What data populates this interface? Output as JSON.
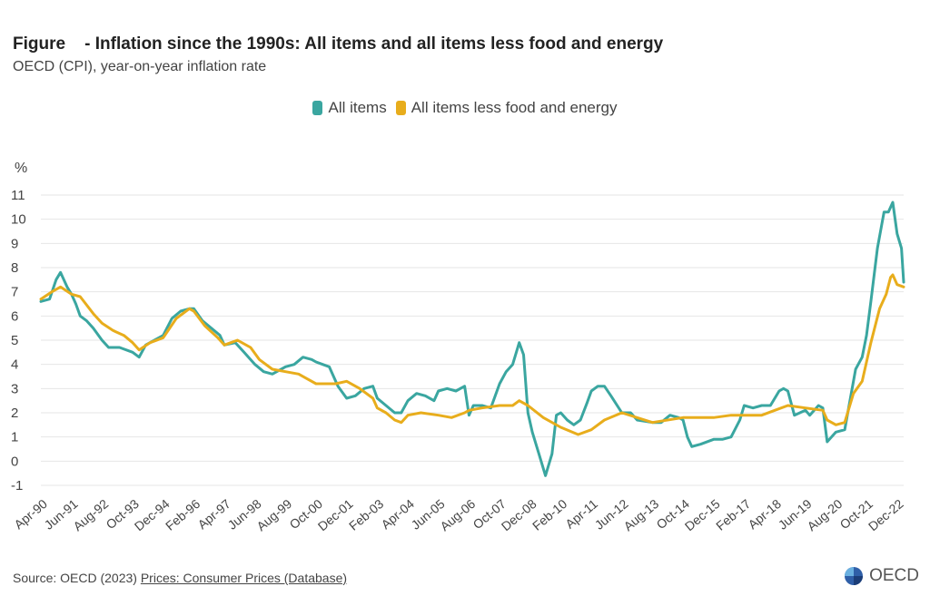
{
  "header": {
    "title": "Figure    - Inflation since the 1990s: All items and all items less food and energy",
    "subtitle": "OECD (CPI), year-on-year inflation rate"
  },
  "legend": [
    {
      "label": "All items",
      "color": "#3aa6a0"
    },
    {
      "label": "All items less food and energy",
      "color": "#e8ad1c"
    }
  ],
  "footer": {
    "source_prefix": "Source: OECD (2023) ",
    "source_link": "Prices: Consumer Prices (Database)",
    "logo_text": "OECD"
  },
  "chart_data": {
    "type": "line",
    "ylabel": "%",
    "ylim": [
      -1,
      11
    ],
    "yticks": [
      -1,
      0,
      1,
      2,
      3,
      4,
      5,
      6,
      7,
      8,
      9,
      10,
      11
    ],
    "grid": true,
    "x_range": [
      "Apr-90",
      "Mar-23"
    ],
    "xticks": [
      "Apr-90",
      "Jun-91",
      "Aug-92",
      "Oct-93",
      "Dec-94",
      "Feb-96",
      "Apr-97",
      "Jun-98",
      "Aug-99",
      "Oct-00",
      "Dec-01",
      "Feb-03",
      "Apr-04",
      "Jun-05",
      "Aug-06",
      "Oct-07",
      "Dec-08",
      "Feb-10",
      "Apr-11",
      "Jun-12",
      "Aug-13",
      "Oct-14",
      "Dec-15",
      "Feb-17",
      "Apr-18",
      "Jun-19",
      "Aug-20",
      "Oct-21",
      "Dec-22"
    ],
    "series": [
      {
        "name": "All items",
        "color": "#3aa6a0",
        "points": [
          [
            "Apr-90",
            6.6
          ],
          [
            "Aug-90",
            6.7
          ],
          [
            "Nov-90",
            7.5
          ],
          [
            "Jan-91",
            7.8
          ],
          [
            "Apr-91",
            7.2
          ],
          [
            "Jun-91",
            6.9
          ],
          [
            "Aug-91",
            6.5
          ],
          [
            "Oct-91",
            6.0
          ],
          [
            "Jan-92",
            5.8
          ],
          [
            "Apr-92",
            5.5
          ],
          [
            "Aug-92",
            5.0
          ],
          [
            "Nov-92",
            4.7
          ],
          [
            "Apr-93",
            4.7
          ],
          [
            "Oct-93",
            4.5
          ],
          [
            "Jan-94",
            4.3
          ],
          [
            "Apr-94",
            4.8
          ],
          [
            "Aug-94",
            5.0
          ],
          [
            "Dec-94",
            5.2
          ],
          [
            "Apr-95",
            5.9
          ],
          [
            "Aug-95",
            6.2
          ],
          [
            "Dec-95",
            6.3
          ],
          [
            "Feb-96",
            6.3
          ],
          [
            "Jun-96",
            5.8
          ],
          [
            "Oct-96",
            5.5
          ],
          [
            "Feb-97",
            5.2
          ],
          [
            "Apr-97",
            4.8
          ],
          [
            "Sep-97",
            4.9
          ],
          [
            "Jan-98",
            4.5
          ],
          [
            "Jun-98",
            4.0
          ],
          [
            "Oct-98",
            3.7
          ],
          [
            "Feb-99",
            3.6
          ],
          [
            "Aug-99",
            3.9
          ],
          [
            "Dec-99",
            4.0
          ],
          [
            "Apr-00",
            4.3
          ],
          [
            "Aug-00",
            4.2
          ],
          [
            "Oct-00",
            4.1
          ],
          [
            "Jan-01",
            4.0
          ],
          [
            "Apr-01",
            3.9
          ],
          [
            "Aug-01",
            3.1
          ],
          [
            "Dec-01",
            2.6
          ],
          [
            "Apr-02",
            2.7
          ],
          [
            "Aug-02",
            3.0
          ],
          [
            "Dec-02",
            3.1
          ],
          [
            "Feb-03",
            2.6
          ],
          [
            "Jun-03",
            2.3
          ],
          [
            "Oct-03",
            2.0
          ],
          [
            "Jan-04",
            2.0
          ],
          [
            "Apr-04",
            2.5
          ],
          [
            "Aug-04",
            2.8
          ],
          [
            "Dec-04",
            2.7
          ],
          [
            "Apr-05",
            2.5
          ],
          [
            "Jun-05",
            2.9
          ],
          [
            "Oct-05",
            3.0
          ],
          [
            "Feb-06",
            2.9
          ],
          [
            "Jun-06",
            3.1
          ],
          [
            "Aug-06",
            1.9
          ],
          [
            "Oct-06",
            2.3
          ],
          [
            "Feb-07",
            2.3
          ],
          [
            "Jun-07",
            2.2
          ],
          [
            "Oct-07",
            3.2
          ],
          [
            "Jan-08",
            3.7
          ],
          [
            "Apr-08",
            4.0
          ],
          [
            "Jul-08",
            4.9
          ],
          [
            "Sep-08",
            4.4
          ],
          [
            "Nov-08",
            2.0
          ],
          [
            "Jan-09",
            1.2
          ],
          [
            "Apr-09",
            0.3
          ],
          [
            "Jul-09",
            -0.6
          ],
          [
            "Oct-09",
            0.3
          ],
          [
            "Dec-09",
            1.9
          ],
          [
            "Feb-10",
            2.0
          ],
          [
            "May-10",
            1.7
          ],
          [
            "Aug-10",
            1.5
          ],
          [
            "Nov-10",
            1.7
          ],
          [
            "Feb-11",
            2.4
          ],
          [
            "Apr-11",
            2.9
          ],
          [
            "Jul-11",
            3.1
          ],
          [
            "Oct-11",
            3.1
          ],
          [
            "Jan-12",
            2.7
          ],
          [
            "Jun-12",
            2.0
          ],
          [
            "Oct-12",
            2.0
          ],
          [
            "Jan-13",
            1.7
          ],
          [
            "Aug-13",
            1.6
          ],
          [
            "Dec-13",
            1.6
          ],
          [
            "Apr-14",
            1.9
          ],
          [
            "Aug-14",
            1.8
          ],
          [
            "Oct-14",
            1.7
          ],
          [
            "Dec-14",
            1.0
          ],
          [
            "Feb-15",
            0.6
          ],
          [
            "Jun-15",
            0.7
          ],
          [
            "Dec-15",
            0.9
          ],
          [
            "Apr-16",
            0.9
          ],
          [
            "Aug-16",
            1.0
          ],
          [
            "Dec-16",
            1.7
          ],
          [
            "Feb-17",
            2.3
          ],
          [
            "Jun-17",
            2.2
          ],
          [
            "Oct-17",
            2.3
          ],
          [
            "Feb-18",
            2.3
          ],
          [
            "Jun-18",
            2.9
          ],
          [
            "Aug-18",
            3.0
          ],
          [
            "Oct-18",
            2.9
          ],
          [
            "Jan-19",
            1.9
          ],
          [
            "Jun-19",
            2.1
          ],
          [
            "Aug-19",
            1.9
          ],
          [
            "Dec-19",
            2.3
          ],
          [
            "Feb-20",
            2.2
          ],
          [
            "Apr-20",
            0.8
          ],
          [
            "Aug-20",
            1.2
          ],
          [
            "Dec-20",
            1.3
          ],
          [
            "Mar-21",
            2.8
          ],
          [
            "May-21",
            3.8
          ],
          [
            "Aug-21",
            4.3
          ],
          [
            "Oct-21",
            5.2
          ],
          [
            "Dec-21",
            6.6
          ],
          [
            "Mar-22",
            8.8
          ],
          [
            "Jun-22",
            10.3
          ],
          [
            "Aug-22",
            10.3
          ],
          [
            "Oct-22",
            10.7
          ],
          [
            "Dec-22",
            9.4
          ],
          [
            "Feb-23",
            8.8
          ],
          [
            "Mar-23",
            7.4
          ]
        ]
      },
      {
        "name": "All items less food and energy",
        "color": "#e8ad1c",
        "points": [
          [
            "Apr-90",
            6.7
          ],
          [
            "Sep-90",
            7.0
          ],
          [
            "Jan-91",
            7.2
          ],
          [
            "Jun-91",
            6.9
          ],
          [
            "Oct-91",
            6.8
          ],
          [
            "Apr-92",
            6.1
          ],
          [
            "Aug-92",
            5.7
          ],
          [
            "Jan-93",
            5.4
          ],
          [
            "Jun-93",
            5.2
          ],
          [
            "Oct-93",
            4.9
          ],
          [
            "Jan-94",
            4.6
          ],
          [
            "Jun-94",
            4.9
          ],
          [
            "Dec-94",
            5.1
          ],
          [
            "Jun-95",
            5.9
          ],
          [
            "Dec-95",
            6.3
          ],
          [
            "Feb-96",
            6.2
          ],
          [
            "Jul-96",
            5.6
          ],
          [
            "Jan-97",
            5.1
          ],
          [
            "Apr-97",
            4.8
          ],
          [
            "Oct-97",
            5.0
          ],
          [
            "Apr-98",
            4.7
          ],
          [
            "Aug-98",
            4.2
          ],
          [
            "Feb-99",
            3.8
          ],
          [
            "Aug-99",
            3.7
          ],
          [
            "Feb-00",
            3.6
          ],
          [
            "Jun-00",
            3.4
          ],
          [
            "Oct-00",
            3.2
          ],
          [
            "Feb-01",
            3.2
          ],
          [
            "Jul-01",
            3.2
          ],
          [
            "Dec-01",
            3.3
          ],
          [
            "Jun-02",
            3.0
          ],
          [
            "Dec-02",
            2.6
          ],
          [
            "Feb-03",
            2.2
          ],
          [
            "Jun-03",
            2.0
          ],
          [
            "Oct-03",
            1.7
          ],
          [
            "Jan-04",
            1.6
          ],
          [
            "Apr-04",
            1.9
          ],
          [
            "Oct-04",
            2.0
          ],
          [
            "Jun-05",
            1.9
          ],
          [
            "Dec-05",
            1.8
          ],
          [
            "Jun-06",
            2.0
          ],
          [
            "Aug-06",
            2.1
          ],
          [
            "Feb-07",
            2.2
          ],
          [
            "Oct-07",
            2.3
          ],
          [
            "Apr-08",
            2.3
          ],
          [
            "Jul-08",
            2.5
          ],
          [
            "Nov-08",
            2.3
          ],
          [
            "Jun-09",
            1.8
          ],
          [
            "Feb-10",
            1.4
          ],
          [
            "Oct-10",
            1.1
          ],
          [
            "Apr-11",
            1.3
          ],
          [
            "Oct-11",
            1.7
          ],
          [
            "Jun-12",
            2.0
          ],
          [
            "Aug-13",
            1.6
          ],
          [
            "Oct-14",
            1.8
          ],
          [
            "Dec-15",
            1.8
          ],
          [
            "Aug-16",
            1.9
          ],
          [
            "Feb-17",
            1.9
          ],
          [
            "Oct-17",
            1.9
          ],
          [
            "Apr-18",
            2.1
          ],
          [
            "Oct-18",
            2.3
          ],
          [
            "Jun-19",
            2.2
          ],
          [
            "Feb-20",
            2.1
          ],
          [
            "Apr-20",
            1.7
          ],
          [
            "Aug-20",
            1.5
          ],
          [
            "Dec-20",
            1.6
          ],
          [
            "Apr-21",
            2.8
          ],
          [
            "Aug-21",
            3.3
          ],
          [
            "Dec-21",
            4.9
          ],
          [
            "Apr-22",
            6.3
          ],
          [
            "Jul-22",
            6.9
          ],
          [
            "Sep-22",
            7.6
          ],
          [
            "Oct-22",
            7.7
          ],
          [
            "Dec-22",
            7.3
          ],
          [
            "Mar-23",
            7.2
          ]
        ]
      }
    ]
  }
}
